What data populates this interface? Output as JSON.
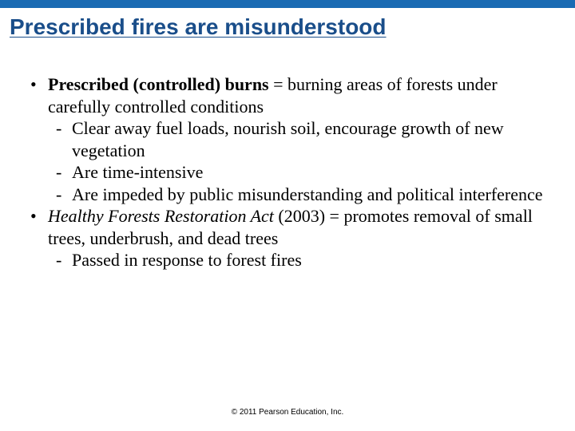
{
  "accent_color": "#1a6bb3",
  "title_color": "#1a4e8a",
  "title": "Prescribed fires are misunderstood",
  "bullets": [
    {
      "lead_bold": "Prescribed (controlled) burns",
      "lead_rest": " = burning areas of forests under carefully controlled conditions",
      "subs": [
        "Clear away fuel loads, nourish soil, encourage growth of new vegetation",
        "Are time-intensive",
        "Are impeded by public misunderstanding and political interference"
      ]
    },
    {
      "lead_italic": "Healthy Forests Restoration Act",
      "lead_rest": " (2003) = promotes removal of small trees, underbrush, and dead trees",
      "subs": [
        "Passed in response to forest fires"
      ]
    }
  ],
  "footer": "© 2011 Pearson Education, Inc."
}
